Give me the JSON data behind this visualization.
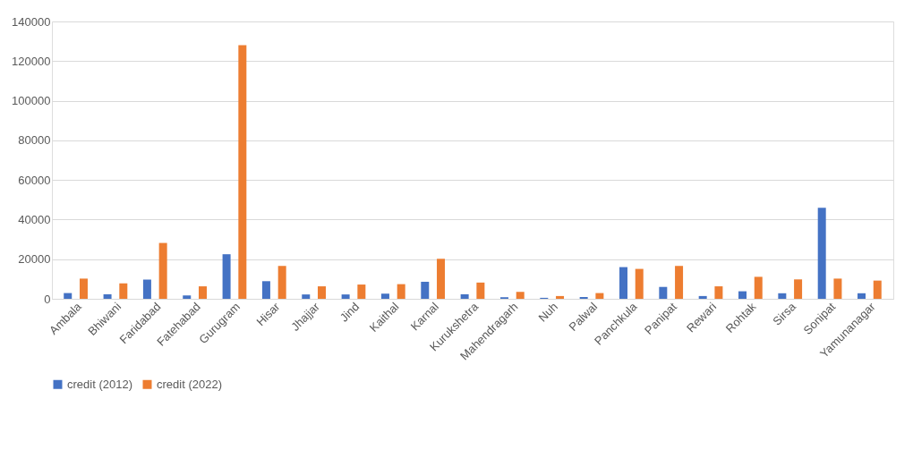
{
  "chart_data": {
    "type": "bar",
    "categories": [
      "Ambala",
      "Bhiwani",
      "Faridabad",
      "Fatehabad",
      "Gurugram",
      "Hisar",
      "Jhajjar",
      "Jind",
      "Kaithal",
      "Karnal",
      "Kurukshetra",
      "Mahendragarh",
      "Nuh",
      "Palwal",
      "Panchkula",
      "Panipat",
      "Rewari",
      "Rohtak",
      "Sirsa",
      "Sonipat",
      "Yamunanagar"
    ],
    "series": [
      {
        "name": "credit (2012)",
        "color": "#4472c4",
        "values": [
          2900,
          2300,
          9700,
          1700,
          22500,
          8900,
          2200,
          2200,
          2600,
          8600,
          2300,
          800,
          500,
          900,
          16000,
          6000,
          1400,
          3800,
          2800,
          46000,
          2800
        ]
      },
      {
        "name": "credit (2022)",
        "color": "#ed7d31",
        "values": [
          10200,
          7800,
          28200,
          6300,
          128000,
          16600,
          6300,
          7200,
          7400,
          20200,
          8200,
          3500,
          1400,
          2900,
          15100,
          16600,
          6300,
          11100,
          9800,
          10200,
          9200
        ]
      }
    ],
    "ylim": [
      0,
      140000
    ],
    "yticks": [
      0,
      20000,
      40000,
      60000,
      80000,
      100000,
      120000,
      140000
    ],
    "grid": "y",
    "legend": "bottom"
  }
}
